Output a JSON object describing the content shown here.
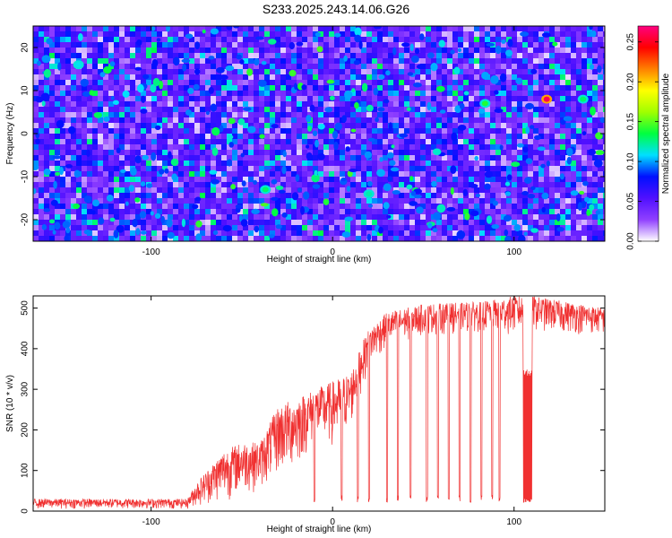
{
  "title": "S233.2025.243.14.06.G26",
  "chart_data": [
    {
      "type": "heatmap",
      "xlabel": "Height of straight line (km)",
      "ylabel": "Frequency (Hz)",
      "xlim": [
        -165,
        150
      ],
      "ylim": [
        -25,
        25
      ],
      "x_ticks": [
        -100,
        0,
        100
      ],
      "y_ticks": [
        -20,
        -10,
        0,
        10,
        20
      ],
      "colorbar": {
        "label": "Normalized spectral amplitude",
        "range": [
          0,
          0.27
        ],
        "ticks": [
          0.0,
          0.05,
          0.1,
          0.15,
          0.2,
          0.25
        ],
        "tick_labels": [
          "0.00",
          "0.05",
          "0.10",
          "0.15",
          "0.20",
          "0.25"
        ],
        "colors": [
          "#ffffff",
          "#9040ff",
          "#5010ff",
          "#0010ff",
          "#00e0ff",
          "#00ff40",
          "#a0ff00",
          "#ffff00",
          "#ff8000",
          "#ff0000",
          "#ff0080"
        ]
      },
      "hotspots": [
        {
          "x": 118,
          "y": 8,
          "value": 0.26
        },
        {
          "x": 84,
          "y": 7,
          "value": 0.14
        },
        {
          "x": 138,
          "y": 8,
          "value": 0.13
        },
        {
          "x": -37,
          "y": -13,
          "value": 0.13
        },
        {
          "x": 20,
          "y": -14,
          "value": 0.12
        },
        {
          "x": -140,
          "y": 16,
          "value": 0.11
        }
      ]
    },
    {
      "type": "line",
      "xlabel": "Height of straight line (km)",
      "ylabel": "SNR (10 * v/v)",
      "xlim": [
        -165,
        150
      ],
      "ylim": [
        0,
        530
      ],
      "x_ticks": [
        -100,
        0,
        100
      ],
      "y_ticks": [
        0,
        100,
        200,
        300,
        400,
        500
      ],
      "series_color": "#f03030",
      "envelope": [
        {
          "x": -165,
          "low": 5,
          "high": 30
        },
        {
          "x": -80,
          "low": 5,
          "high": 30
        },
        {
          "x": -75,
          "low": 10,
          "high": 70
        },
        {
          "x": -60,
          "low": 20,
          "high": 150
        },
        {
          "x": -50,
          "low": 40,
          "high": 170
        },
        {
          "x": -40,
          "low": 50,
          "high": 170
        },
        {
          "x": -30,
          "low": 80,
          "high": 260
        },
        {
          "x": -20,
          "low": 100,
          "high": 280
        },
        {
          "x": -10,
          "low": 160,
          "high": 300
        },
        {
          "x": 0,
          "low": 150,
          "high": 320
        },
        {
          "x": 10,
          "low": 200,
          "high": 340
        },
        {
          "x": 15,
          "low": 280,
          "high": 400
        },
        {
          "x": 20,
          "low": 350,
          "high": 450
        },
        {
          "x": 30,
          "low": 400,
          "high": 490
        },
        {
          "x": 50,
          "low": 430,
          "high": 510
        },
        {
          "x": 80,
          "low": 440,
          "high": 515
        },
        {
          "x": 100,
          "low": 430,
          "high": 530
        },
        {
          "x": 110,
          "low": 440,
          "high": 530
        },
        {
          "x": 150,
          "low": 430,
          "high": 500
        }
      ],
      "dropouts": [
        -10,
        5,
        14,
        20,
        30,
        36,
        43,
        52,
        58,
        64,
        70,
        76,
        82,
        88,
        92
      ],
      "flat_segment": {
        "x_start": 105,
        "x_end": 110,
        "low": 20,
        "high": 350
      }
    }
  ]
}
